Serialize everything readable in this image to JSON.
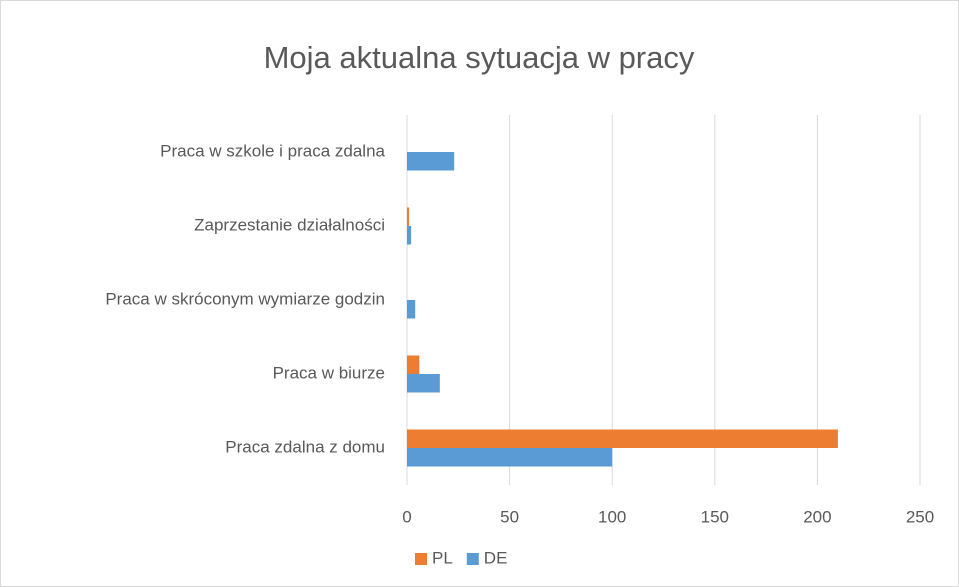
{
  "chart_data": {
    "type": "bar",
    "orientation": "horizontal",
    "title": "Moja aktualna sytuacja w pracy",
    "categories": [
      "Praca w szkole i praca zdalna",
      "Zaprzestanie działalności",
      "Praca w skróconym wymiarze godzin",
      "Praca w biurze",
      "Praca zdalna z domu"
    ],
    "series": [
      {
        "name": "PL",
        "color": "#ed7d31",
        "values": [
          0,
          1,
          0,
          6,
          210
        ]
      },
      {
        "name": "DE",
        "color": "#5b9bd5",
        "values": [
          23,
          2,
          4,
          16,
          100
        ]
      }
    ],
    "xlim": [
      0,
      250
    ],
    "xticks": [
      0,
      50,
      100,
      150,
      200,
      250
    ],
    "grid": true,
    "legend": "bottom"
  }
}
